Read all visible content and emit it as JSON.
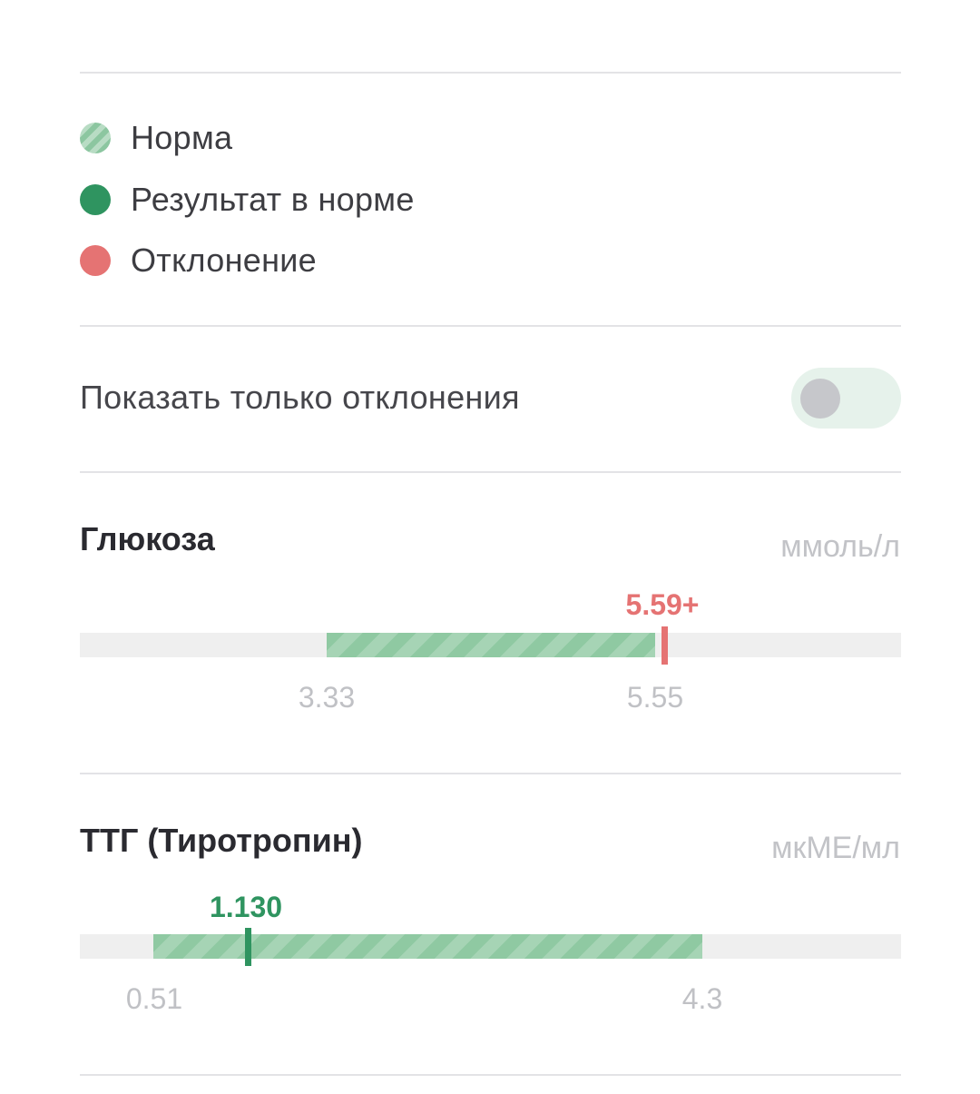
{
  "legend": {
    "items": [
      {
        "label": "Норма"
      },
      {
        "label": "Результат в норме"
      },
      {
        "label": "Отклонение"
      }
    ]
  },
  "filter": {
    "label": "Показать только отклонения",
    "enabled": false
  },
  "tests": [
    {
      "name": "Глюкоза",
      "unit": "ммоль/л",
      "value": "5.59+",
      "status": "deviation",
      "ref_low": "3.33",
      "ref_high": "5.55"
    },
    {
      "name": "ТТГ (Тиротропин)",
      "unit": "мкМЕ/мл",
      "value": "1.130",
      "status": "normal",
      "ref_low": "0.51",
      "ref_high": "4.3"
    }
  ],
  "colors": {
    "normal": "#2f9460",
    "deviation": "#e57373",
    "norm_range": "#8fc9a2"
  }
}
